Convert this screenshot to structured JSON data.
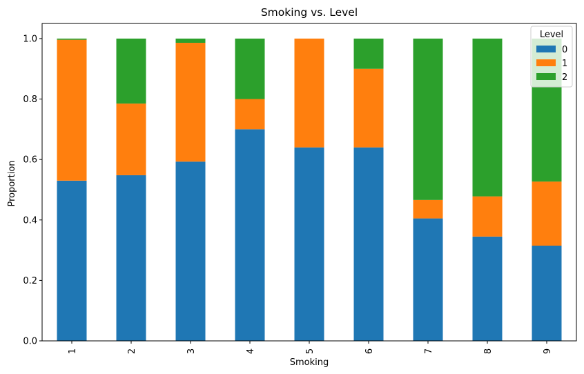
{
  "chart_data": {
    "type": "bar",
    "stacked": true,
    "title": "Smoking vs. Level",
    "xlabel": "Smoking",
    "ylabel": "Proportion",
    "ylim": [
      0,
      1.05
    ],
    "yticks": [
      "0.0",
      "0.2",
      "0.4",
      "0.6",
      "0.8",
      "1.0"
    ],
    "ytick_values": [
      0,
      0.2,
      0.4,
      0.6,
      0.8,
      1.0
    ],
    "categories": [
      "1",
      "2",
      "3",
      "4",
      "5",
      "6",
      "7",
      "8",
      "9"
    ],
    "legend": {
      "title": "Level",
      "placement": "top-right"
    },
    "grid": false,
    "series": [
      {
        "name": "0",
        "color": "#1f77b4",
        "values": [
          0.53,
          0.548,
          0.593,
          0.7,
          0.64,
          0.64,
          0.405,
          0.345,
          0.315
        ]
      },
      {
        "name": "1",
        "color": "#ff7f0e",
        "values": [
          0.466,
          0.237,
          0.393,
          0.1,
          0.36,
          0.26,
          0.061,
          0.133,
          0.212
        ]
      },
      {
        "name": "2",
        "color": "#2ca02c",
        "values": [
          0.004,
          0.215,
          0.014,
          0.2,
          0.0,
          0.1,
          0.534,
          0.522,
          0.473
        ]
      }
    ]
  }
}
